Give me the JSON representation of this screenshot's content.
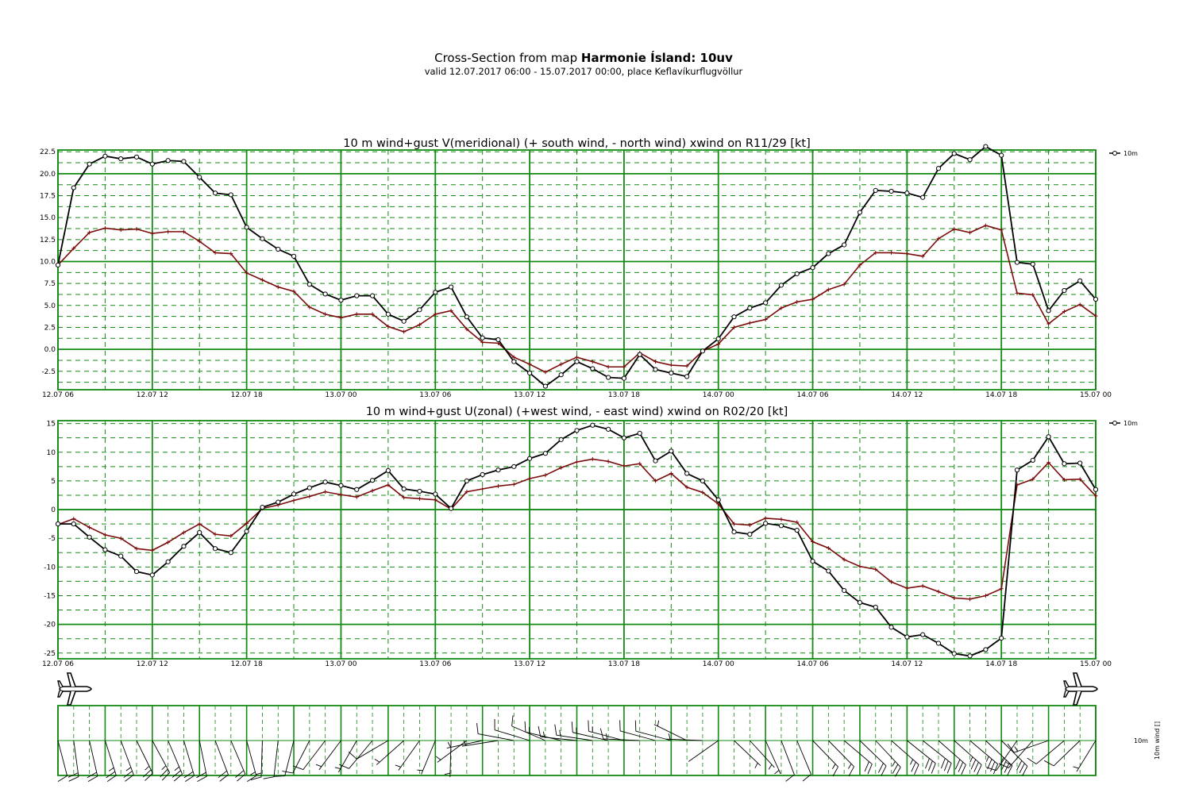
{
  "header": {
    "title_prefix": "Cross-Section from map",
    "title_bold": "Harmonie Ísland:  10uv",
    "subtitle": "valid 12.07.2017 06:00 - 15.07.2017 00:00, place Keflavíkurflugvöllur"
  },
  "colors": {
    "grid": "#138a13",
    "wind": "#000000",
    "gust": "#7b0b0b"
  },
  "time_axis_labels": [
    "12.07 06",
    "12.07 12",
    "12.07 18",
    "13.07 00",
    "13.07 06",
    "13.07 12",
    "13.07 18",
    "14.07 00",
    "14.07 06",
    "14.07 12",
    "14.07 18",
    "15.07 00"
  ],
  "chart_data": [
    {
      "type": "line",
      "title": "10 m wind+gust V(meridional) (+ south wind, - north wind) xwind on R11/29 [kt]",
      "x_start": "12.07.2017 06:00",
      "x_step_hours": 1,
      "ylim": [
        -4.6,
        22.7
      ],
      "yticks": [
        -2.5,
        0.0,
        2.5,
        5.0,
        7.5,
        10.0,
        12.5,
        15.0,
        17.5,
        20.0,
        22.5
      ],
      "ytick_labels": [
        "-2.5",
        "0.0",
        "2.5",
        "5.0",
        "7.5",
        "10.0",
        "12.5",
        "15.0",
        "17.5",
        "20.0",
        "22.5"
      ],
      "grid": true,
      "legend": {
        "position": "right",
        "entry": "10m"
      },
      "series": [
        {
          "name": "10m",
          "marker": "circle",
          "values": [
            9.6,
            18.4,
            21.1,
            22.0,
            21.7,
            21.9,
            21.1,
            21.5,
            21.4,
            19.6,
            17.8,
            17.6,
            13.9,
            12.6,
            11.4,
            10.6,
            7.4,
            6.3,
            5.6,
            6.1,
            6.1,
            4.0,
            3.2,
            4.5,
            6.5,
            7.1,
            3.7,
            1.3,
            1.1,
            -1.4,
            -2.7,
            -4.2,
            -2.9,
            -1.4,
            -2.2,
            -3.2,
            -3.3,
            -0.6,
            -2.3,
            -2.7,
            -3.1,
            -0.2,
            1.2,
            3.7,
            4.7,
            5.3,
            7.3,
            8.6,
            9.3,
            10.9,
            11.9,
            15.6,
            18.1,
            18.0,
            17.8,
            17.3,
            20.6,
            22.3,
            21.6,
            23.1,
            22.1,
            9.9,
            9.7,
            4.4,
            6.7,
            7.8,
            5.7
          ]
        },
        {
          "name": "gust",
          "marker": "plus",
          "values": [
            9.6,
            11.5,
            13.3,
            13.8,
            13.6,
            13.7,
            13.2,
            13.4,
            13.4,
            12.3,
            11.0,
            10.9,
            8.7,
            7.9,
            7.1,
            6.6,
            4.8,
            4.0,
            3.6,
            4.0,
            4.0,
            2.6,
            2.0,
            2.8,
            4.0,
            4.4,
            2.3,
            0.8,
            0.7,
            -0.9,
            -1.7,
            -2.6,
            -1.7,
            -0.9,
            -1.4,
            -2.0,
            -2.0,
            -0.4,
            -1.4,
            -1.8,
            -1.9,
            -0.2,
            0.6,
            2.5,
            3.0,
            3.4,
            4.7,
            5.4,
            5.7,
            6.8,
            7.4,
            9.6,
            11.0,
            11.0,
            10.9,
            10.6,
            12.6,
            13.7,
            13.3,
            14.1,
            13.6,
            6.4,
            6.2,
            2.9,
            4.3,
            5.1,
            3.8
          ]
        }
      ]
    },
    {
      "type": "line",
      "title": "10 m wind+gust U(zonal) (+west wind, - east wind) xwind on R02/20 [kt]",
      "x_start": "12.07.2017 06:00",
      "x_step_hours": 1,
      "ylim": [
        -26,
        15.5
      ],
      "yticks": [
        -25,
        -20,
        -15,
        -10,
        -5,
        0,
        5,
        10,
        15
      ],
      "ytick_labels": [
        "-25",
        "-20",
        "-15",
        "-10",
        "-5",
        "0",
        "5",
        "10",
        "15"
      ],
      "grid": true,
      "legend": {
        "position": "right",
        "entry": "10m"
      },
      "series": [
        {
          "name": "10m",
          "marker": "circle",
          "values": [
            -2.5,
            -2.5,
            -4.8,
            -7.0,
            -8.1,
            -10.8,
            -11.4,
            -9.1,
            -6.4,
            -4.0,
            -6.8,
            -7.5,
            -3.8,
            0.4,
            1.3,
            2.7,
            3.8,
            4.8,
            4.2,
            3.5,
            5.1,
            6.8,
            3.6,
            3.2,
            2.7,
            0.2,
            5.0,
            6.1,
            6.9,
            7.5,
            8.9,
            9.8,
            12.2,
            13.8,
            14.7,
            14.0,
            12.5,
            13.3,
            8.5,
            10.2,
            6.3,
            5.0,
            1.7,
            -3.9,
            -4.3,
            -2.4,
            -2.8,
            -3.6,
            -9.0,
            -10.7,
            -14.1,
            -16.2,
            -17.0,
            -20.5,
            -22.2,
            -21.8,
            -23.3,
            -25.1,
            -25.5,
            -24.4,
            -22.4,
            6.9,
            8.6,
            12.7,
            8.0,
            8.1,
            3.5
          ]
        },
        {
          "name": "gust",
          "marker": "plus",
          "values": [
            -2.6,
            -1.6,
            -3.1,
            -4.4,
            -5.0,
            -6.8,
            -7.1,
            -5.7,
            -4.0,
            -2.5,
            -4.3,
            -4.6,
            -2.4,
            0.2,
            0.8,
            1.6,
            2.3,
            3.1,
            2.6,
            2.2,
            3.3,
            4.3,
            2.1,
            1.9,
            1.7,
            0.1,
            3.1,
            3.6,
            4.1,
            4.4,
            5.4,
            6.0,
            7.3,
            8.3,
            8.8,
            8.4,
            7.6,
            8.0,
            5.0,
            6.3,
            3.9,
            3.0,
            1.0,
            -2.5,
            -2.7,
            -1.5,
            -1.7,
            -2.2,
            -5.6,
            -6.7,
            -8.7,
            -9.9,
            -10.4,
            -12.6,
            -13.7,
            -13.3,
            -14.3,
            -15.4,
            -15.6,
            -15.0,
            -13.8,
            4.3,
            5.3,
            8.2,
            5.2,
            5.3,
            2.4
          ]
        }
      ]
    }
  ],
  "wind_barbs": {
    "axis_label": "10m wind []",
    "level_label": "10m"
  }
}
